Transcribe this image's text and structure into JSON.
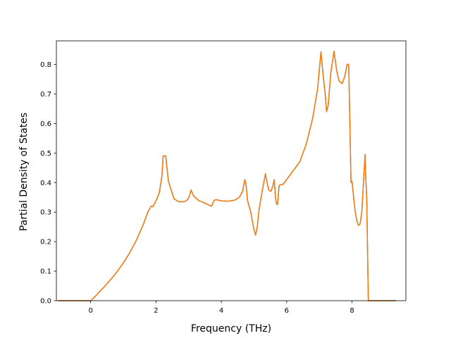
{
  "chart_data": {
    "type": "line",
    "title": "",
    "xlabel": "Frequency (THz)",
    "ylabel": "Partial Density of States",
    "xlim": [
      -1.05,
      9.65
    ],
    "ylim": [
      0.0,
      0.88
    ],
    "xticks": [
      0,
      2,
      4,
      6,
      8
    ],
    "yticks": [
      0.0,
      0.1,
      0.2,
      0.3,
      0.4,
      0.5,
      0.6,
      0.7,
      0.8
    ],
    "grid": false,
    "legend": "none",
    "series": [
      {
        "color": "#ff7f0e",
        "underlay_color": "#1f77b4",
        "x": [
          -1.0,
          -0.5,
          0.0,
          0.1,
          0.2,
          0.4,
          0.6,
          0.8,
          1.0,
          1.2,
          1.4,
          1.6,
          1.75,
          1.85,
          1.9,
          2.0,
          2.1,
          2.18,
          2.22,
          2.3,
          2.32,
          2.38,
          2.45,
          2.55,
          2.7,
          2.85,
          2.95,
          3.02,
          3.07,
          3.15,
          3.3,
          3.5,
          3.7,
          3.78,
          3.85,
          4.0,
          4.2,
          4.4,
          4.55,
          4.65,
          4.72,
          4.76,
          4.8,
          4.9,
          5.0,
          5.05,
          5.1,
          5.15,
          5.25,
          5.35,
          5.4,
          5.45,
          5.52,
          5.58,
          5.62,
          5.65,
          5.68,
          5.72,
          5.77,
          5.82,
          5.9,
          6.0,
          6.2,
          6.4,
          6.6,
          6.8,
          6.95,
          7.05,
          7.12,
          7.18,
          7.22,
          7.27,
          7.35,
          7.45,
          7.53,
          7.6,
          7.7,
          7.78,
          7.85,
          7.9,
          7.97,
          8.0,
          8.05,
          8.1,
          8.15,
          8.2,
          8.25,
          8.3,
          8.35,
          8.4,
          8.42,
          8.45,
          8.5,
          8.52,
          8.6,
          8.8,
          9.0,
          9.35
        ],
        "y": [
          0.0,
          0.0,
          0.0,
          0.01,
          0.022,
          0.045,
          0.07,
          0.097,
          0.128,
          0.163,
          0.205,
          0.255,
          0.3,
          0.32,
          0.318,
          0.338,
          0.365,
          0.42,
          0.49,
          0.49,
          0.465,
          0.405,
          0.38,
          0.345,
          0.335,
          0.335,
          0.34,
          0.352,
          0.375,
          0.355,
          0.34,
          0.33,
          0.32,
          0.34,
          0.342,
          0.338,
          0.337,
          0.34,
          0.35,
          0.37,
          0.41,
          0.39,
          0.34,
          0.3,
          0.24,
          0.222,
          0.25,
          0.305,
          0.37,
          0.43,
          0.4,
          0.375,
          0.37,
          0.39,
          0.41,
          0.36,
          0.33,
          0.325,
          0.39,
          0.393,
          0.395,
          0.41,
          0.44,
          0.47,
          0.53,
          0.62,
          0.72,
          0.843,
          0.76,
          0.7,
          0.64,
          0.66,
          0.77,
          0.845,
          0.78,
          0.745,
          0.735,
          0.76,
          0.8,
          0.8,
          0.4,
          0.405,
          0.35,
          0.3,
          0.27,
          0.255,
          0.26,
          0.3,
          0.4,
          0.495,
          0.42,
          0.35,
          0.0,
          0.0,
          0.0,
          0.0,
          0.0,
          0.0
        ]
      }
    ]
  }
}
